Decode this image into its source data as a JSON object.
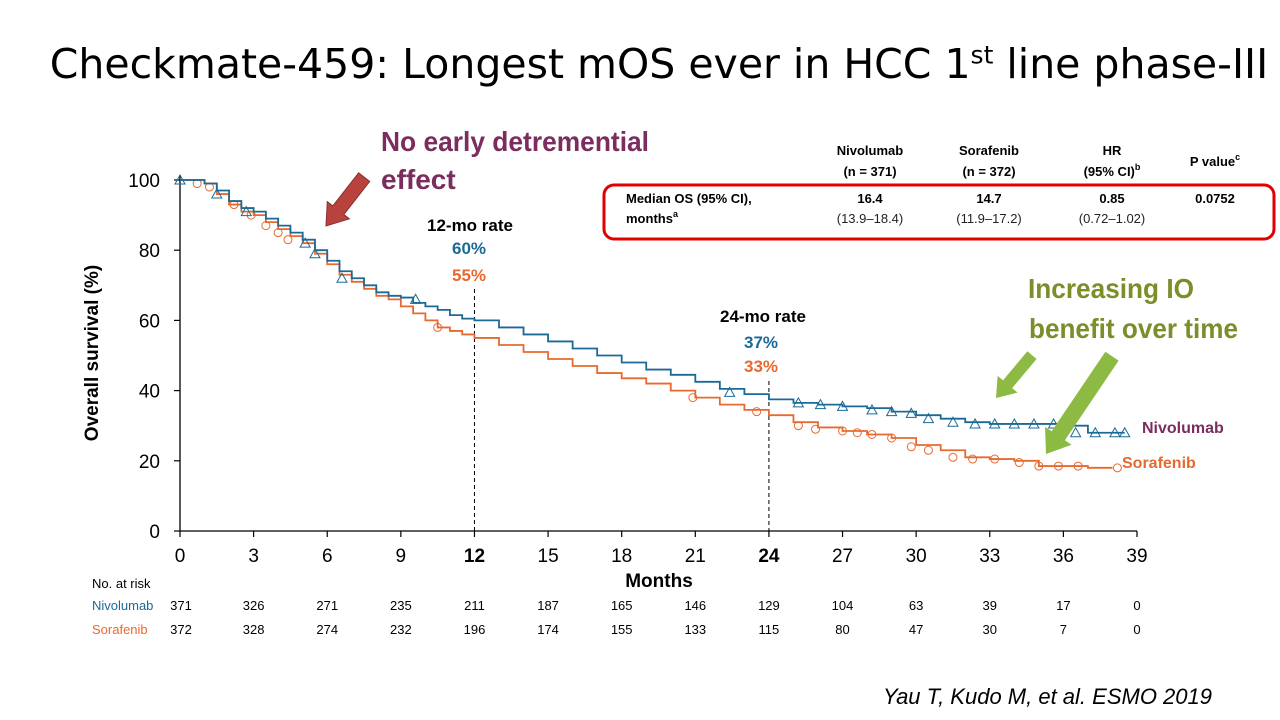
{
  "slide": {
    "title": "Checkmate-459: Longest mOS ever in HCC 1",
    "title_sup": "st",
    "title_tail": " line phase-III",
    "citation": "Yau T, Kudo M, et al. ESMO 2019"
  },
  "annotations": {
    "no_early_line1": "No early detremential",
    "no_early_line2": "effect",
    "increasing_line1": "Increasing IO",
    "increasing_line2": "benefit over time",
    "rate12_title": "12-mo rate",
    "rate12_nivo": "60%",
    "rate12_sora": "55%",
    "rate24_title": "24-mo rate",
    "rate24_nivo": "37%",
    "rate24_sora": "33%",
    "nivo_label": "Nivolumab",
    "sora_label": "Sorafenib"
  },
  "table": {
    "headers": [
      {
        "line1": "Nivolumab",
        "line2": "(n = 371)",
        "sup": ""
      },
      {
        "line1": "Sorafenib",
        "line2": "(n = 372)",
        "sup": ""
      },
      {
        "line1": "HR",
        "line2": "(95% CI)",
        "sup": "b"
      },
      {
        "line1": "P value",
        "line2": "",
        "sup": "c"
      }
    ],
    "row_label_line1": "Median OS (95% CI),",
    "row_label_line2": "months",
    "row_label_sup": "a",
    "row_values": [
      {
        "value": "16.4",
        "ci": "(13.9–18.4)"
      },
      {
        "value": "14.7",
        "ci": "(11.9–17.2)"
      },
      {
        "value": "0.85",
        "ci": "(0.72–1.02)"
      },
      {
        "value": "0.0752",
        "ci": ""
      }
    ]
  },
  "at_risk": {
    "title": "No. at risk",
    "rows": [
      {
        "name": "Nivolumab",
        "values": [
          "371",
          "326",
          "271",
          "235",
          "211",
          "187",
          "165",
          "146",
          "129",
          "104",
          "63",
          "39",
          "17",
          "0"
        ]
      },
      {
        "name": "Sorafenib",
        "values": [
          "372",
          "328",
          "274",
          "232",
          "196",
          "174",
          "155",
          "133",
          "115",
          "80",
          "47",
          "30",
          "7",
          "0"
        ]
      }
    ]
  },
  "colors": {
    "nivolumab": "#1b6a96",
    "sorafenib": "#e8692f",
    "annotation_purple": "#7a2d5e",
    "io_green": "#7a8f2a",
    "arrow_red": "#b8433e",
    "arrow_green": "#8dba42",
    "table_border": "#e00000"
  },
  "chart_data": {
    "type": "line",
    "xlabel": "Months",
    "ylabel": "Overall survival (%)",
    "xlim": [
      0,
      39
    ],
    "ylim": [
      0,
      100
    ],
    "xticks": [
      "0",
      "3",
      "6",
      "9",
      "12",
      "15",
      "18",
      "21",
      "24",
      "27",
      "30",
      "33",
      "36",
      "39"
    ],
    "bold_xticks": [
      "12",
      "24"
    ],
    "yticks": [
      "0",
      "20",
      "40",
      "60",
      "80",
      "100"
    ],
    "reference_lines_x": [
      12,
      24
    ],
    "series": [
      {
        "name": "Nivolumab",
        "step": true,
        "marker": "triangle",
        "x": [
          0,
          0.5,
          1,
          1.5,
          2,
          2.5,
          3,
          3.5,
          4,
          4.5,
          5,
          5.5,
          6,
          6.5,
          7,
          7.5,
          8,
          8.5,
          9,
          9.5,
          10,
          10.5,
          11,
          11.5,
          12,
          13,
          14,
          15,
          16,
          17,
          18,
          19,
          20,
          21,
          22,
          23,
          24,
          25,
          26,
          27,
          28,
          29,
          30,
          31,
          32,
          33,
          34,
          35,
          36,
          37,
          38.5
        ],
        "y": [
          100,
          100,
          99,
          97,
          94,
          92,
          91,
          89,
          87,
          85,
          83,
          80,
          77,
          74,
          72,
          70,
          68,
          67,
          66.5,
          65,
          64,
          63,
          61.5,
          60.5,
          60,
          58,
          56,
          54,
          52,
          50,
          48,
          46,
          44.5,
          42.5,
          40.5,
          39,
          37.5,
          36.5,
          36,
          35.5,
          35,
          34,
          33,
          32,
          31,
          30.5,
          30.5,
          30.5,
          30,
          28,
          28
        ],
        "markers_x": [
          0,
          1.5,
          2.7,
          5.1,
          5.5,
          6.6,
          9.6,
          22.4,
          25.2,
          26.1,
          27,
          28.2,
          29,
          29.8,
          30.5,
          31.5,
          32.4,
          33.2,
          34,
          34.8,
          35.6,
          36.5,
          37.3,
          38.1,
          38.5
        ],
        "markers_y": [
          100,
          96,
          91,
          82,
          79,
          72,
          66,
          39.5,
          36.5,
          36,
          35.5,
          34.5,
          34,
          33.5,
          32,
          31,
          30.5,
          30.5,
          30.5,
          30.5,
          30.5,
          28,
          28,
          28,
          28
        ]
      },
      {
        "name": "Sorafenib",
        "step": true,
        "marker": "circle",
        "x": [
          0,
          0.5,
          1,
          1.5,
          2,
          2.5,
          3,
          3.5,
          4,
          4.5,
          5,
          5.5,
          6,
          6.5,
          7,
          7.5,
          8,
          8.5,
          9,
          9.5,
          10,
          10.5,
          11,
          11.5,
          12,
          13,
          14,
          15,
          16,
          17,
          18,
          19,
          20,
          21,
          22,
          23,
          24,
          25,
          26,
          27,
          28,
          29,
          30,
          31,
          32,
          33,
          34,
          35,
          36,
          37,
          38
        ],
        "y": [
          100,
          100,
          99,
          96,
          93,
          91,
          90,
          88,
          86,
          84,
          82,
          79,
          76,
          73,
          71,
          69,
          67,
          66,
          64,
          62,
          60,
          58,
          57,
          56,
          55,
          53,
          51,
          49,
          47,
          45,
          43.5,
          42,
          40,
          38,
          36,
          34.5,
          33,
          31,
          29.5,
          28.5,
          27.5,
          26.5,
          24.5,
          23,
          21,
          20.5,
          20,
          18.5,
          18.5,
          18,
          18
        ],
        "markers_x": [
          0.7,
          1.2,
          2.2,
          2.9,
          3.5,
          4,
          4.4,
          10.5,
          20.9,
          23.5,
          25.2,
          25.9,
          27,
          27.6,
          28.2,
          29,
          29.8,
          30.5,
          31.5,
          32.3,
          33.2,
          34.2,
          35,
          35.8,
          36.6,
          38.2
        ],
        "markers_y": [
          99,
          98,
          93,
          90,
          87,
          85,
          83,
          58,
          38,
          34,
          30,
          29,
          28.5,
          28,
          27.5,
          26.5,
          24,
          23,
          21,
          20.5,
          20.5,
          19.5,
          18.5,
          18.5,
          18.5,
          18
        ]
      }
    ]
  }
}
